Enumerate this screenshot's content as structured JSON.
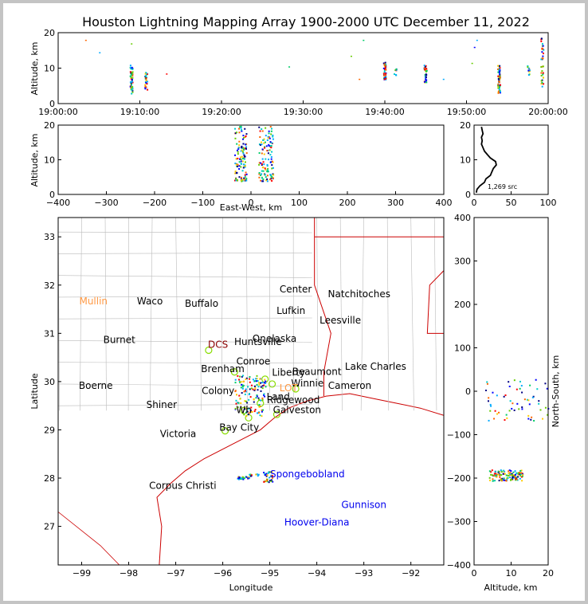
{
  "title": "Houston Lightning Mapping Array 1900-2000 UTC December 11, 2022",
  "colors": {
    "map_border": "#cc0000",
    "county": "#bbbbbb",
    "grid": "#e0e0e0",
    "marker_green": "#88dd00"
  },
  "chart_data": [
    {
      "id": "time-height",
      "type": "scatter",
      "ylabel": "Altitude, km",
      "xlabel": "",
      "ylim": [
        0,
        20
      ],
      "yticks": [
        "0",
        "10",
        "20"
      ],
      "xticks": [
        "19:00:00",
        "19:10:00",
        "19:20:00",
        "19:30:00",
        "19:40:00",
        "19:50:00",
        "20:00:00"
      ],
      "xrange_min": [
        0,
        60
      ],
      "clusters": [
        {
          "t": 8.9,
          "alt_lo": 3.0,
          "alt_hi": 11.0,
          "n": 55
        },
        {
          "t": 10.7,
          "alt_lo": 4.0,
          "alt_hi": 9.0,
          "n": 25
        },
        {
          "t": 39.9,
          "alt_lo": 7.0,
          "alt_hi": 12.0,
          "n": 40
        },
        {
          "t": 41.2,
          "alt_lo": 8.0,
          "alt_hi": 10.0,
          "n": 8
        },
        {
          "t": 44.9,
          "alt_lo": 6.0,
          "alt_hi": 11.0,
          "n": 30
        },
        {
          "t": 53.9,
          "alt_lo": 3.0,
          "alt_hi": 11.0,
          "n": 60
        },
        {
          "t": 57.5,
          "alt_lo": 8.0,
          "alt_hi": 11.0,
          "n": 10
        },
        {
          "t": 59.2,
          "alt_lo": 5.0,
          "alt_hi": 19.0,
          "n": 35
        }
      ],
      "sparse": [
        {
          "t": 3.3,
          "alt": 18
        },
        {
          "t": 5.0,
          "alt": 14.5
        },
        {
          "t": 8.9,
          "alt": 17
        },
        {
          "t": 13.2,
          "alt": 8.5
        },
        {
          "t": 28.2,
          "alt": 10.5
        },
        {
          "t": 35.8,
          "alt": 13.5
        },
        {
          "t": 37.3,
          "alt": 18
        },
        {
          "t": 50.6,
          "alt": 11.5
        },
        {
          "t": 51.2,
          "alt": 18
        },
        {
          "t": 50.9,
          "alt": 16
        },
        {
          "t": 47.1,
          "alt": 7
        },
        {
          "t": 36.8,
          "alt": 7
        }
      ]
    },
    {
      "id": "ew-height",
      "type": "scatter",
      "ylabel": "Altitude, km",
      "xlabel": "East-West, km",
      "xlim": [
        -400,
        400
      ],
      "ylim": [
        0,
        20
      ],
      "xticks": [
        "−400",
        "−300",
        "−200",
        "−100",
        "0",
        "100",
        "200",
        "300",
        "400"
      ],
      "yticks": [
        "0",
        "10",
        "20"
      ],
      "clusters": [
        {
          "x_lo": -35,
          "x_hi": -10,
          "alt_lo": 4,
          "alt_hi": 20,
          "n": 120
        },
        {
          "x_lo": 15,
          "x_hi": 45,
          "alt_lo": 4,
          "alt_hi": 20,
          "n": 120
        }
      ]
    },
    {
      "id": "height-histogram",
      "type": "line",
      "xlim": [
        0,
        100
      ],
      "ylim": [
        0,
        20
      ],
      "xticks": [
        "0",
        "50",
        "100"
      ],
      "yticks": [
        "0",
        "10",
        "20"
      ],
      "annotation": "1,269 src",
      "profile": [
        {
          "alt": 0.5,
          "count": 3
        },
        {
          "alt": 1.5,
          "count": 4
        },
        {
          "alt": 2.5,
          "count": 8
        },
        {
          "alt": 3.5,
          "count": 14
        },
        {
          "alt": 4.5,
          "count": 16
        },
        {
          "alt": 5.5,
          "count": 22
        },
        {
          "alt": 6.5,
          "count": 24
        },
        {
          "alt": 7.5,
          "count": 26
        },
        {
          "alt": 8.5,
          "count": 30
        },
        {
          "alt": 9.5,
          "count": 29
        },
        {
          "alt": 10.5,
          "count": 22
        },
        {
          "alt": 11.5,
          "count": 18
        },
        {
          "alt": 12.5,
          "count": 14
        },
        {
          "alt": 13.5,
          "count": 12
        },
        {
          "alt": 14.5,
          "count": 10
        },
        {
          "alt": 15.5,
          "count": 11
        },
        {
          "alt": 16.5,
          "count": 10
        },
        {
          "alt": 17.5,
          "count": 12
        },
        {
          "alt": 18.5,
          "count": 11
        },
        {
          "alt": 19.5,
          "count": 10
        }
      ]
    },
    {
      "id": "plan-view-map",
      "type": "scatter",
      "xlabel": "Longitude",
      "ylabel": "Latitude",
      "xlim": [
        -99.5,
        -91.3
      ],
      "ylim": [
        26.2,
        33.4
      ],
      "xticks": [
        "−99",
        "−98",
        "−97",
        "−96",
        "−95",
        "−94",
        "−93",
        "−92"
      ],
      "yticks": [
        "27",
        "28",
        "29",
        "30",
        "31",
        "32",
        "33"
      ],
      "clusters": [
        {
          "lon_lo": -95.75,
          "lon_hi": -95.1,
          "lat_lo": 29.3,
          "lat_hi": 30.15,
          "n": 130
        },
        {
          "lon_lo": -95.7,
          "lon_hi": -95.45,
          "lat_lo": 27.98,
          "lat_hi": 28.05,
          "n": 25
        },
        {
          "lon_lo": -95.15,
          "lon_hi": -94.95,
          "lat_lo": 27.92,
          "lat_hi": 28.15,
          "n": 35
        },
        {
          "lon_lo": -95.45,
          "lon_hi": -95.25,
          "lat_lo": 28.05,
          "lat_hi": 28.1,
          "n": 10
        }
      ],
      "stations": [
        {
          "lon": -96.3,
          "lat": 30.65
        },
        {
          "lon": -95.75,
          "lat": 30.2
        },
        {
          "lon": -95.1,
          "lat": 30.05
        },
        {
          "lon": -94.45,
          "lat": 29.85
        },
        {
          "lon": -95.2,
          "lat": 29.55
        },
        {
          "lon": -95.45,
          "lat": 29.25
        },
        {
          "lon": -94.85,
          "lat": 29.32
        },
        {
          "lon": -95.95,
          "lat": 28.98
        },
        {
          "lon": -95.55,
          "lat": 29.4
        },
        {
          "lon": -94.95,
          "lat": 29.95
        }
      ],
      "labels": [
        {
          "text": "Mullin",
          "lon": -98.75,
          "lat": 31.6,
          "color": "#ff9944"
        },
        {
          "text": "Waco",
          "lon": -97.55,
          "lat": 31.6,
          "color": "#000000"
        },
        {
          "text": "Buffalo",
          "lon": -96.45,
          "lat": 31.55,
          "color": "#000000"
        },
        {
          "text": "Center",
          "lon": -94.45,
          "lat": 31.85,
          "color": "#000000"
        },
        {
          "text": "Natchitoches",
          "lon": -93.1,
          "lat": 31.75,
          "color": "#000000"
        },
        {
          "text": "Lufkin",
          "lon": -94.55,
          "lat": 31.4,
          "color": "#000000"
        },
        {
          "text": "Leesville",
          "lon": -93.5,
          "lat": 31.2,
          "color": "#000000"
        },
        {
          "text": "Burnet",
          "lon": -98.2,
          "lat": 30.8,
          "color": "#000000"
        },
        {
          "text": "DCS",
          "lon": -96.1,
          "lat": 30.7,
          "color": "#8b0000"
        },
        {
          "text": "Huntsville",
          "lon": -95.25,
          "lat": 30.76,
          "color": "#000000"
        },
        {
          "text": "Onelaska",
          "lon": -94.9,
          "lat": 30.82,
          "color": "#000000"
        },
        {
          "text": "Conroe",
          "lon": -95.35,
          "lat": 30.35,
          "color": "#000000"
        },
        {
          "text": "Brenham",
          "lon": -96.0,
          "lat": 30.2,
          "color": "#000000"
        },
        {
          "text": "Liberty",
          "lon": -94.6,
          "lat": 30.12,
          "color": "#000000"
        },
        {
          "text": "Beaumont",
          "lon": -94.0,
          "lat": 30.14,
          "color": "#000000"
        },
        {
          "text": "Lake Charles",
          "lon": -92.75,
          "lat": 30.25,
          "color": "#000000"
        },
        {
          "text": "Boerne",
          "lon": -98.7,
          "lat": 29.85,
          "color": "#000000"
        },
        {
          "text": "Winnie",
          "lon": -94.2,
          "lat": 29.9,
          "color": "#000000"
        },
        {
          "text": "Cameron",
          "lon": -93.3,
          "lat": 29.85,
          "color": "#000000"
        },
        {
          "text": "Colony",
          "lon": -96.1,
          "lat": 29.74,
          "color": "#000000"
        },
        {
          "text": "LOT",
          "lon": -94.6,
          "lat": 29.8,
          "color": "#ff9944"
        },
        {
          "text": "Land",
          "lon": -94.82,
          "lat": 29.62,
          "color": "#000000"
        },
        {
          "text": "Ridgewood",
          "lon": -94.5,
          "lat": 29.55,
          "color": "#000000"
        },
        {
          "text": "Shiner",
          "lon": -97.3,
          "lat": 29.45,
          "color": "#000000"
        },
        {
          "text": "Galveston",
          "lon": -94.42,
          "lat": 29.35,
          "color": "#000000"
        },
        {
          "text": "Wh",
          "lon": -95.55,
          "lat": 29.35,
          "color": "#000000"
        },
        {
          "text": "Bay City",
          "lon": -95.65,
          "lat": 28.98,
          "color": "#000000"
        },
        {
          "text": "Victoria",
          "lon": -96.95,
          "lat": 28.85,
          "color": "#000000"
        },
        {
          "text": "Spongebobland",
          "lon": -94.2,
          "lat": 28.02,
          "color": "#0000ee"
        },
        {
          "text": "Corpus Christi",
          "lon": -96.85,
          "lat": 27.78,
          "color": "#000000"
        },
        {
          "text": "Gunnison",
          "lon": -93.0,
          "lat": 27.38,
          "color": "#0000ee"
        },
        {
          "text": "Hoover-Diana",
          "lon": -94.0,
          "lat": 27.02,
          "color": "#0000ee"
        }
      ]
    },
    {
      "id": "ns-height",
      "type": "scatter",
      "xlabel": "Altitude, km",
      "ylabel": "North-South, km",
      "xlim": [
        0,
        20
      ],
      "ylim": [
        -400,
        400
      ],
      "xticks": [
        "0",
        "10",
        "20"
      ],
      "yticks": [
        "−400",
        "−300",
        "−200",
        "−100",
        "0",
        "100",
        "200",
        "300",
        "400"
      ],
      "clusters": [
        {
          "alt_lo": 4,
          "alt_hi": 13,
          "ns_lo": -205,
          "ns_hi": -180,
          "n": 120
        },
        {
          "alt_lo": 3,
          "alt_hi": 20,
          "ns_lo": -70,
          "ns_hi": 30,
          "n": 60
        }
      ]
    }
  ]
}
